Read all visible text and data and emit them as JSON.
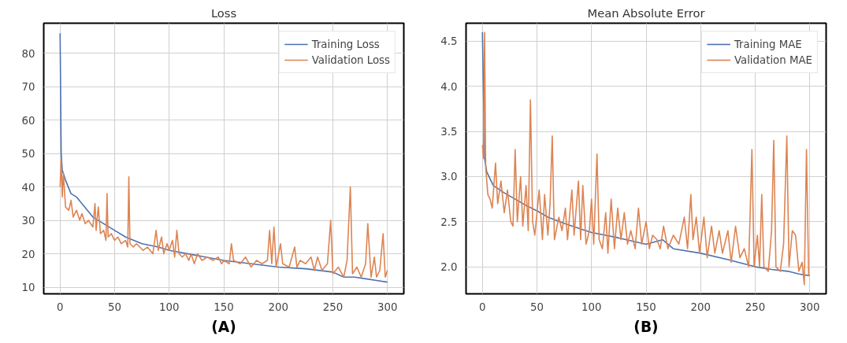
{
  "chart_data": [
    {
      "type": "line",
      "title": "Loss",
      "annotations": [
        "(A)"
      ],
      "xlim": [
        -15,
        315
      ],
      "ylim": [
        8,
        89
      ],
      "xticks": [
        0,
        50,
        100,
        150,
        200,
        250,
        300
      ],
      "yticks": [
        10,
        20,
        30,
        40,
        50,
        60,
        70,
        80
      ],
      "grid": true,
      "legend": "top right",
      "line_style": "solid",
      "marker": "none",
      "series": [
        {
          "name": "Training Loss",
          "color": "#4c72b0",
          "x": [
            0,
            1,
            2,
            5,
            10,
            15,
            20,
            25,
            30,
            40,
            50,
            60,
            75,
            90,
            100,
            125,
            150,
            175,
            200,
            225,
            250,
            260,
            270,
            280,
            290,
            300
          ],
          "values": [
            86,
            50,
            45,
            42,
            38,
            37,
            35,
            33,
            31,
            29,
            27,
            25,
            23,
            22,
            21,
            19.5,
            18,
            17,
            16,
            15.5,
            14.5,
            13,
            13,
            12.5,
            12,
            11.5
          ]
        },
        {
          "name": "Validation Loss",
          "color": "#dd8452",
          "x": [
            0,
            1,
            2,
            3,
            5,
            8,
            10,
            12,
            15,
            18,
            20,
            23,
            26,
            30,
            32,
            33,
            35,
            37,
            40,
            42,
            43,
            44,
            47,
            50,
            53,
            56,
            60,
            62,
            63,
            64,
            67,
            70,
            73,
            76,
            80,
            85,
            88,
            90,
            93,
            95,
            98,
            100,
            103,
            105,
            107,
            109,
            112,
            115,
            118,
            120,
            123,
            126,
            130,
            135,
            140,
            145,
            148,
            150,
            155,
            157,
            159,
            165,
            170,
            175,
            180,
            185,
            190,
            192,
            194,
            196,
            198,
            202,
            204,
            210,
            215,
            217,
            220,
            225,
            230,
            233,
            236,
            240,
            245,
            248,
            250,
            255,
            260,
            263,
            266,
            268,
            272,
            276,
            280,
            282,
            285,
            288,
            290,
            293,
            296,
            298,
            300
          ],
          "values": [
            40,
            48,
            37,
            44,
            34,
            33,
            36,
            31,
            33,
            30,
            32,
            29,
            30,
            28,
            35,
            27,
            34,
            26,
            27,
            24,
            38,
            25,
            26,
            24,
            25,
            23,
            24,
            22,
            43,
            23,
            22,
            23,
            22,
            21,
            22,
            20,
            27,
            21,
            25,
            20,
            23,
            21,
            24,
            19,
            27,
            20,
            19,
            20,
            18,
            20,
            17,
            20,
            18,
            19,
            18,
            19,
            17,
            18,
            17,
            23,
            18,
            17,
            19,
            16,
            18,
            17,
            18,
            27,
            17,
            28,
            16,
            23,
            17,
            16,
            22,
            16,
            18,
            17,
            19,
            15,
            19,
            15,
            17,
            30,
            14,
            16,
            13,
            18,
            40,
            14,
            16,
            13,
            17,
            29,
            13,
            19,
            13,
            15,
            26,
            13,
            15
          ]
        }
      ]
    },
    {
      "type": "line",
      "title": "Mean Absolute Error",
      "annotations": [
        "(B)"
      ],
      "xlim": [
        -15,
        315
      ],
      "ylim": [
        1.7,
        4.7
      ],
      "xticks": [
        0,
        50,
        100,
        150,
        200,
        250,
        300
      ],
      "yticks": [
        {
          "value": 2,
          "label": "2.0"
        },
        2.5,
        {
          "value": 3,
          "label": "3.0"
        },
        3.5,
        {
          "value": 4,
          "label": "4.0"
        },
        4.5
      ],
      "grid": true,
      "legend": "top right",
      "line_style": "solid",
      "marker": "none",
      "series": [
        {
          "name": "Training MAE",
          "color": "#4c72b0",
          "x": [
            0,
            2,
            4,
            10,
            20,
            30,
            40,
            50,
            60,
            75,
            90,
            100,
            125,
            150,
            165,
            175,
            200,
            225,
            250,
            265,
            280,
            290,
            300
          ],
          "values": [
            4.6,
            3.2,
            3.05,
            2.9,
            2.82,
            2.75,
            2.68,
            2.62,
            2.55,
            2.48,
            2.42,
            2.38,
            2.32,
            2.25,
            2.3,
            2.2,
            2.15,
            2.08,
            2.0,
            1.97,
            1.95,
            1.92,
            1.9
          ]
        },
        {
          "name": "Validation MAE",
          "color": "#dd8452",
          "x": [
            0,
            1,
            2,
            3,
            5,
            7,
            9,
            12,
            14,
            17,
            20,
            23,
            26,
            28,
            30,
            32,
            35,
            37,
            40,
            42,
            44,
            46,
            48,
            52,
            55,
            57,
            60,
            62,
            64,
            66,
            70,
            73,
            76,
            78,
            82,
            84,
            88,
            90,
            92,
            95,
            98,
            100,
            102,
            105,
            107,
            110,
            113,
            115,
            118,
            121,
            124,
            127,
            130,
            133,
            136,
            140,
            143,
            146,
            150,
            153,
            156,
            160,
            163,
            166,
            170,
            175,
            180,
            185,
            188,
            191,
            193,
            196,
            199,
            203,
            206,
            210,
            213,
            217,
            220,
            225,
            228,
            232,
            236,
            240,
            244,
            247,
            249,
            252,
            254,
            256,
            258,
            262,
            265,
            267,
            269,
            273,
            276,
            279,
            281,
            284,
            287,
            290,
            293,
            295,
            297,
            299
          ],
          "values": [
            3.35,
            3.2,
            4.6,
            3.1,
            2.8,
            2.75,
            2.65,
            3.15,
            2.7,
            2.95,
            2.6,
            2.85,
            2.5,
            2.45,
            3.3,
            2.5,
            3.0,
            2.45,
            2.9,
            2.4,
            3.85,
            2.5,
            2.35,
            2.85,
            2.3,
            2.8,
            2.35,
            2.7,
            3.45,
            2.3,
            2.55,
            2.4,
            2.65,
            2.3,
            2.85,
            2.35,
            2.95,
            2.3,
            2.9,
            2.25,
            2.4,
            2.75,
            2.25,
            3.25,
            2.3,
            2.2,
            2.6,
            2.15,
            2.75,
            2.2,
            2.65,
            2.3,
            2.6,
            2.25,
            2.4,
            2.2,
            2.65,
            2.25,
            2.5,
            2.2,
            2.35,
            2.3,
            2.2,
            2.45,
            2.2,
            2.35,
            2.25,
            2.55,
            2.2,
            2.8,
            2.3,
            2.55,
            2.15,
            2.55,
            2.1,
            2.45,
            2.15,
            2.4,
            2.15,
            2.4,
            2.05,
            2.45,
            2.1,
            2.2,
            2.0,
            3.3,
            2.0,
            2.35,
            2.0,
            2.8,
            2.0,
            1.95,
            2.4,
            3.4,
            2.0,
            1.95,
            2.25,
            3.45,
            2.0,
            2.4,
            2.35,
            1.95,
            2.05,
            1.8,
            3.3,
            1.9
          ]
        }
      ]
    }
  ]
}
